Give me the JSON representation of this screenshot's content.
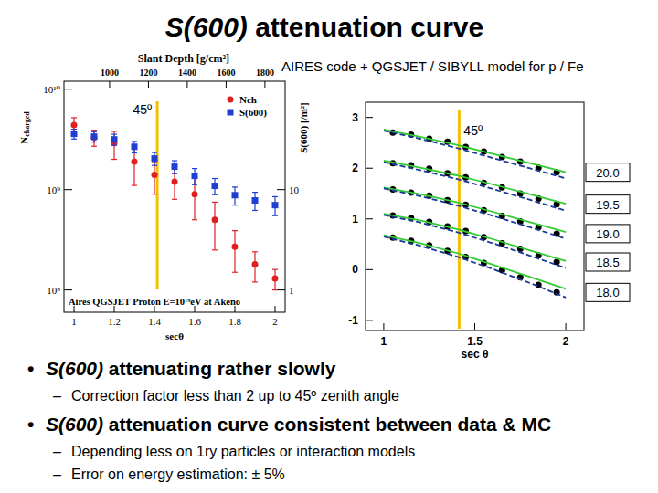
{
  "title": "S(600) attenuation curve",
  "subtitle": "AIRES code + QGSJET / SIBYLL model for p / Fe",
  "bullets": [
    {
      "symbol": "•",
      "text": "S(600) attenuating rather slowly",
      "sub": [
        {
          "symbol": "–",
          "text": "Correction factor less than 2 up to 45º zenith angle"
        }
      ]
    },
    {
      "symbol": "•",
      "text": "S(600) attenuation curve consistent between data & MC",
      "sub": [
        {
          "symbol": "–",
          "text": "Depending less on 1ry particles or interaction models"
        },
        {
          "symbol": "–",
          "text": "Error on energy estimation: ± 5%"
        }
      ]
    }
  ],
  "chart_data": [
    {
      "type": "scatter",
      "title": "Aires QGSJET Proton E=10¹⁹eV at Akeno",
      "x_label": "secθ",
      "y_label": "Ncharged",
      "y2_label": "S(600) [/m²]",
      "x2_label": "Slant Depth [g/cm²]",
      "log": "y",
      "xlim": [
        0.95,
        2.05
      ],
      "xticks": [
        1,
        1.2,
        1.4,
        1.6,
        1.8,
        2
      ],
      "x2lim": [
        765,
        1904
      ],
      "x2ticks": [
        1000,
        1200,
        1400,
        1600,
        1800
      ],
      "ylim": [
        60000000,
        12000000000
      ],
      "yticks": [
        {
          "value": 100000000,
          "label": "10⁸"
        },
        {
          "value": 1000000000,
          "label": "10⁹"
        },
        {
          "value": 10000000000,
          "label": "10¹⁰"
        }
      ],
      "y2lim": [
        0.6,
        120
      ],
      "y2ticks": [
        1,
        10
      ],
      "legend": "top-right",
      "x": [
        1,
        1.1,
        1.2,
        1.3,
        1.4,
        1.5,
        1.6,
        1.7,
        1.8,
        1.9,
        2
      ],
      "series": [
        {
          "name": "Nch",
          "color": "#e02020",
          "marker": "circle",
          "line_style": "none",
          "values": [
            4400000000,
            3300000000,
            2900000000,
            1900000000,
            1400000000,
            1200000000,
            900000000,
            500000000,
            270000000,
            180000000,
            130000000
          ],
          "errors": [
            800000000,
            600000000,
            900000000,
            800000000,
            500000000,
            400000000,
            400000000,
            250000000,
            120000000,
            60000000,
            30000000
          ]
        },
        {
          "name": "S(600)",
          "color": "#1f3fd0",
          "marker": "square",
          "line_style": "none",
          "axis": "y2",
          "values": [
            35.9,
            33.7,
            31.6,
            26.7,
            20.4,
            16.9,
            13.7,
            10.9,
            8.8,
            7.8,
            7.0
          ],
          "errors": [
            4,
            4,
            4,
            3.5,
            3,
            2.5,
            2.5,
            2,
            1.8,
            1.6,
            1.5
          ]
        }
      ],
      "annotations": [
        {
          "x": 1.414,
          "text": "45º"
        }
      ]
    },
    {
      "type": "scatter",
      "x_label": "sec θ",
      "xlim": [
        0.9,
        2.1
      ],
      "xticks": [
        1,
        1.5,
        2
      ],
      "ylim": [
        -1.2,
        3.3
      ],
      "yticks": [
        -1,
        0,
        1,
        2,
        3
      ],
      "series": [
        {
          "name": "20.0",
          "color": "#000000",
          "marker": "circle",
          "line_style": "none",
          "x": [
            1.05,
            1.15,
            1.25,
            1.35,
            1.45,
            1.55,
            1.65,
            1.75,
            1.85,
            1.95
          ],
          "values": [
            2.7,
            2.66,
            2.58,
            2.52,
            2.42,
            2.33,
            2.22,
            2.13,
            2.01,
            1.92
          ]
        },
        {
          "name": "19.5",
          "color": "#000000",
          "marker": "circle",
          "line_style": "none",
          "x": [
            1.05,
            1.15,
            1.25,
            1.35,
            1.45,
            1.55,
            1.65,
            1.75,
            1.85,
            1.95
          ],
          "values": [
            2.1,
            2.06,
            1.99,
            1.9,
            1.82,
            1.71,
            1.62,
            1.5,
            1.4,
            1.29
          ]
        },
        {
          "name": "19.0",
          "color": "#000000",
          "marker": "circle",
          "line_style": "none",
          "x": [
            1.05,
            1.15,
            1.25,
            1.35,
            1.45,
            1.55,
            1.65,
            1.75,
            1.85,
            1.95
          ],
          "values": [
            1.58,
            1.52,
            1.46,
            1.37,
            1.28,
            1.17,
            1.06,
            0.95,
            0.84,
            0.71
          ]
        },
        {
          "name": "18.5",
          "color": "#000000",
          "marker": "circle",
          "line_style": "none",
          "x": [
            1.05,
            1.15,
            1.25,
            1.35,
            1.45,
            1.55,
            1.65,
            1.75,
            1.85,
            1.95
          ],
          "values": [
            1.07,
            1.02,
            0.94,
            0.85,
            0.76,
            0.64,
            0.52,
            0.41,
            0.28,
            0.15
          ]
        },
        {
          "name": "18.0",
          "color": "#000000",
          "marker": "circle",
          "line_style": "none",
          "x": [
            1.05,
            1.15,
            1.25,
            1.35,
            1.45,
            1.55,
            1.65,
            1.75,
            1.85,
            1.95
          ],
          "values": [
            0.63,
            0.57,
            0.48,
            0.37,
            0.25,
            0.13,
            -0.01,
            -0.15,
            -0.3,
            -0.45
          ]
        },
        {
          "color": "#33cc33",
          "marker": "none",
          "line_style": "solid",
          "x": [
            1,
            1.2,
            1.4,
            1.6,
            1.8,
            2
          ],
          "values": [
            2.76,
            2.62,
            2.46,
            2.28,
            2.1,
            1.92
          ]
        },
        {
          "color": "#33cc33",
          "marker": "none",
          "line_style": "solid",
          "x": [
            1,
            1.2,
            1.4,
            1.6,
            1.8,
            2
          ],
          "values": [
            2.15,
            2.01,
            1.86,
            1.68,
            1.49,
            1.3
          ]
        },
        {
          "color": "#33cc33",
          "marker": "none",
          "line_style": "solid",
          "x": [
            1,
            1.2,
            1.4,
            1.6,
            1.8,
            2
          ],
          "values": [
            1.62,
            1.49,
            1.33,
            1.14,
            0.94,
            0.74
          ]
        },
        {
          "color": "#33cc33",
          "marker": "none",
          "line_style": "solid",
          "x": [
            1,
            1.2,
            1.4,
            1.6,
            1.8,
            2
          ],
          "values": [
            1.1,
            0.97,
            0.8,
            0.6,
            0.38,
            0.17
          ]
        },
        {
          "color": "#33cc33",
          "marker": "none",
          "line_style": "solid",
          "x": [
            1,
            1.2,
            1.4,
            1.6,
            1.8,
            2
          ],
          "values": [
            0.68,
            0.52,
            0.33,
            0.1,
            -0.14,
            -0.38
          ]
        },
        {
          "color": "#1a3a9a",
          "marker": "none",
          "line_style": "dashed",
          "x": [
            1,
            1.2,
            1.4,
            1.6,
            1.8,
            2
          ],
          "values": [
            2.74,
            2.58,
            2.4,
            2.2,
            2.0,
            1.8
          ]
        },
        {
          "color": "#1a3a9a",
          "marker": "none",
          "line_style": "dashed",
          "x": [
            1,
            1.2,
            1.4,
            1.6,
            1.8,
            2
          ],
          "values": [
            2.12,
            1.96,
            1.79,
            1.59,
            1.38,
            1.16
          ]
        },
        {
          "color": "#1a3a9a",
          "marker": "none",
          "line_style": "dashed",
          "x": [
            1,
            1.2,
            1.4,
            1.6,
            1.8,
            2
          ],
          "values": [
            1.6,
            1.45,
            1.27,
            1.06,
            0.84,
            0.61
          ]
        },
        {
          "color": "#1a3a9a",
          "marker": "none",
          "line_style": "dashed",
          "x": [
            1,
            1.2,
            1.4,
            1.6,
            1.8,
            2
          ],
          "values": [
            1.08,
            0.93,
            0.74,
            0.52,
            0.28,
            0.03
          ]
        },
        {
          "color": "#1a3a9a",
          "marker": "none",
          "line_style": "dashed",
          "x": [
            1,
            1.2,
            1.4,
            1.6,
            1.8,
            2
          ],
          "values": [
            0.65,
            0.47,
            0.26,
            0.01,
            -0.26,
            -0.55
          ]
        }
      ],
      "annotations": [
        {
          "x": 1.414,
          "text": "45º"
        }
      ]
    }
  ]
}
